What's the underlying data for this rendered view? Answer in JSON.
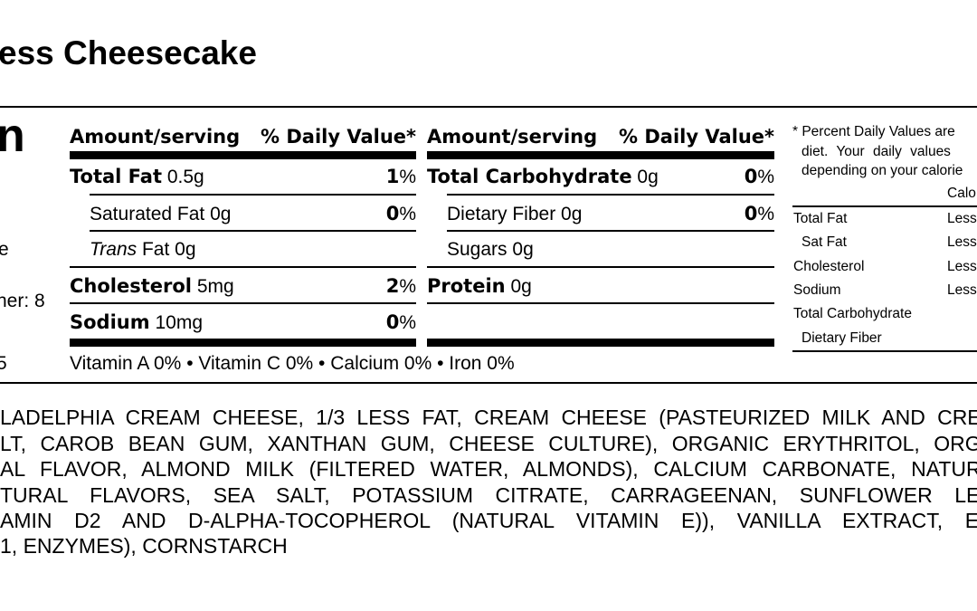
{
  "title": "ess Cheesecake",
  "left_panel": {
    "heading_fragment": "n",
    "line1": "e",
    "servings_fragment": "ner: 8",
    "line3": "5"
  },
  "columns": [
    {
      "header_amount": "Amount/serving",
      "header_dv": "% Daily Value*",
      "rows": [
        {
          "name": "Total Fat",
          "amount": "0.5g",
          "pct_num": "1",
          "pct_sign": "%",
          "bold": true
        },
        {
          "name": "Saturated Fat",
          "amount": "0g",
          "pct_num": "0",
          "pct_sign": "%",
          "bold": false
        },
        {
          "name_italic": "Trans",
          "name": "Fat",
          "amount": "0g",
          "bold": false
        },
        {
          "name": "Cholesterol",
          "amount": "5mg",
          "pct_num": "2",
          "pct_sign": "%",
          "bold": true
        },
        {
          "name": "Sodium",
          "amount": "10mg",
          "pct_num": "0",
          "pct_sign": "%",
          "bold": true
        }
      ]
    },
    {
      "header_amount": "Amount/serving",
      "header_dv": "% Daily Value*",
      "rows": [
        {
          "name": "Total Carbohydrate",
          "amount": "0g",
          "pct_num": "0",
          "pct_sign": "%",
          "bold": true
        },
        {
          "name": "Dietary Fiber",
          "amount": "0g",
          "pct_num": "0",
          "pct_sign": "%",
          "bold": false
        },
        {
          "name": "Sugars",
          "amount": "0g",
          "bold": false
        },
        {
          "name": "Protein",
          "amount": "0g",
          "bold": true
        }
      ]
    }
  ],
  "vitamins": "Vitamin A 0% • Vitamin C 0% • Calcium 0% • Iron 0%",
  "footnote": {
    "lines": [
      "* Percent Daily Values are",
      "diet. Your daily values",
      "depending on your calorie"
    ],
    "calories_header": "Calo",
    "rows": [
      {
        "name": "Total Fat",
        "less": "Less"
      },
      {
        "name": "Sat Fat",
        "less": "Less"
      },
      {
        "name": "Cholesterol",
        "less": "Less"
      },
      {
        "name": "Sodium",
        "less": "Less"
      },
      {
        "name": "Total Carbohydrate",
        "less": ""
      },
      {
        "name": "Dietary Fiber",
        "less": ""
      }
    ]
  },
  "ingredients": [
    "LADELPHIA CREAM CHEESE, 1/3 LESS FAT, CREAM CHEESE (PASTEURIZED MILK AND CREA",
    "LT, CAROB BEAN GUM, XANTHAN GUM, CHEESE CULTURE), ORGANIC ERYTHRITOL, ORGA",
    "AL FLAVOR, ALMOND MILK (FILTERED WATER, ALMONDS), CALCIUM CARBONATE, NATURA",
    "TURAL FLAVORS, SEA SALT, POTASSIUM CITRATE, CARRAGEENAN, SUNFLOWER LEC",
    "AMIN D2 AND D-ALPHA-TOCOPHEROL (NATURAL VITAMIN E)), VANILLA EXTRACT, EG",
    "1, ENZYMES), CORNSTARCH"
  ]
}
